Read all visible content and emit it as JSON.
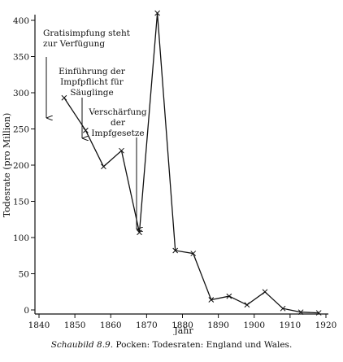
{
  "chart_data": {
    "type": "line",
    "xlabel": "Jahr",
    "ylabel": "Todesrate (pro Million)",
    "xlim": [
      1840,
      1920
    ],
    "ylim": [
      0,
      400
    ],
    "xticks": [
      1840,
      1850,
      1860,
      1870,
      1880,
      1890,
      1900,
      1910,
      1920
    ],
    "yticks": [
      0,
      50,
      100,
      150,
      200,
      250,
      300,
      350,
      400
    ],
    "marker": "x",
    "grid": false,
    "series": [
      {
        "x": [
          1847,
          1853,
          1858,
          1863,
          1868,
          1873,
          1878,
          1883,
          1888,
          1893,
          1898,
          1903,
          1908,
          1913,
          1918
        ],
        "y": [
          293,
          248,
          198,
          220,
          107,
          410,
          82,
          78,
          14,
          19,
          7,
          25,
          2,
          -3,
          -4
        ]
      }
    ],
    "annotations": [
      {
        "lines": [
          "Gratisimpfung steht",
          "zur Verfügung"
        ],
        "x": 1840
      },
      {
        "lines": [
          "Einführung der",
          "Impfpflicht für",
          "Säuglinge"
        ],
        "x": 1853
      },
      {
        "lines": [
          "Verschärfung",
          "der",
          "Impfgesetze"
        ],
        "x": 1867
      }
    ]
  },
  "caption": {
    "label": "Schaubild 8.9.",
    "text": "Pocken: Todesraten: England und Wales."
  }
}
